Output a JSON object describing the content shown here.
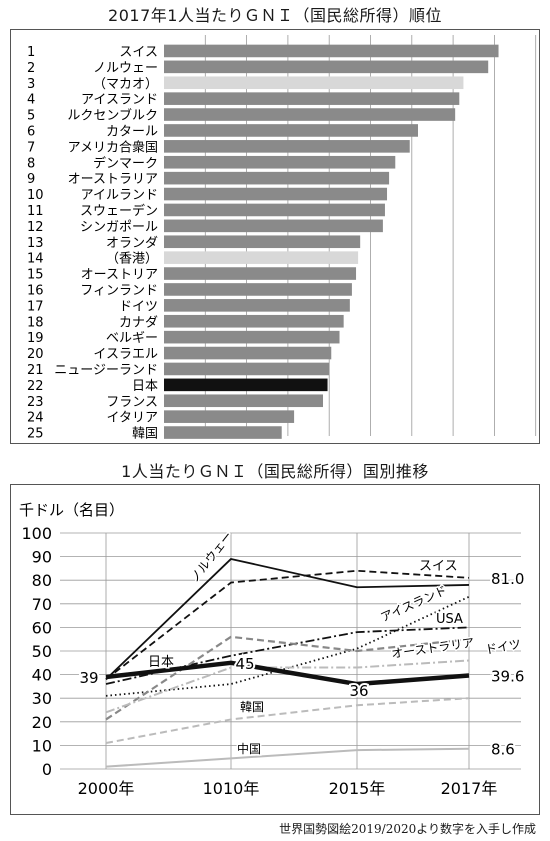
{
  "titles": {
    "ranking": "2017年1人当たりＧＮＩ（国民総所得）順位",
    "trend": "1人当たりＧＮＩ（国民総所得）国別推移"
  },
  "source": "世界国勢図絵2019/2020より数字を入手し作成",
  "colors": {
    "normal": "#8a8a8a",
    "highlight": "#d8d8d8",
    "japan": "#111111"
  },
  "chart_data": [
    {
      "type": "bar",
      "orientation": "horizontal",
      "title": "2017年1人当たりＧＮＩ（国民総所得）順位",
      "categories": [
        "スイス",
        "ノルウェー",
        "（マカオ）",
        "アイスランド",
        "ルクセンブルク",
        "カタール",
        "アメリカ合衆国",
        "デンマーク",
        "オーストラリア",
        "アイルランド",
        "スウェーデン",
        "シンガポール",
        "オランダ",
        "（香港）",
        "オーストリア",
        "フィンランド",
        "ドイツ",
        "カナダ",
        "ベルギー",
        "イスラエル",
        "ニュージーランド",
        "日本",
        "フランス",
        "イタリア",
        "韓国"
      ],
      "ranks": [
        "1",
        "2",
        "3",
        "4",
        "5",
        "6",
        "7",
        "8",
        "9",
        "10",
        "11",
        "12",
        "13",
        "14",
        "15",
        "16",
        "17",
        "18",
        "19",
        "20",
        "21",
        "22",
        "23",
        "24",
        "25"
      ],
      "values": [
        81.0,
        78.5,
        72.5,
        71.5,
        70.5,
        61.5,
        59.5,
        56.0,
        54.5,
        54.0,
        53.5,
        53.0,
        47.5,
        47.0,
        46.5,
        45.5,
        45.0,
        43.5,
        42.5,
        40.5,
        40.0,
        39.6,
        38.5,
        31.5,
        28.5
      ],
      "styles": [
        "normal",
        "normal",
        "highlight",
        "normal",
        "normal",
        "normal",
        "normal",
        "normal",
        "normal",
        "normal",
        "normal",
        "normal",
        "normal",
        "highlight",
        "normal",
        "normal",
        "normal",
        "normal",
        "normal",
        "normal",
        "normal",
        "japan",
        "normal",
        "normal",
        "normal"
      ],
      "xlim": [
        0,
        90
      ],
      "grid": true
    },
    {
      "type": "line",
      "title": "1人当たりＧＮＩ（国民総所得）国別推移",
      "ylabel": "千ドル（名目）",
      "categories": [
        "2000年",
        "1010年",
        "2015年",
        "2017年"
      ],
      "yticks": [
        0,
        10,
        20,
        30,
        40,
        50,
        60,
        70,
        80,
        90,
        100
      ],
      "ylim": [
        0,
        100
      ],
      "grid": true,
      "series": [
        {
          "name": "ノルウェー",
          "values": [
            38,
            89,
            77,
            78
          ],
          "color": "#111111",
          "dash": "",
          "width": 1.8
        },
        {
          "name": "スイス",
          "values": [
            38,
            79,
            84,
            81
          ],
          "color": "#111111",
          "dash": "7,4",
          "width": 1.8
        },
        {
          "name": "アイスランド",
          "values": [
            31,
            36,
            51,
            73
          ],
          "color": "#111111",
          "dash": "1.5,3",
          "width": 1.8
        },
        {
          "name": "USA",
          "values": [
            36,
            48,
            58,
            60
          ],
          "color": "#111111",
          "dash": "9,3,2,3",
          "width": 1.8
        },
        {
          "name": "オーストラリア",
          "values": [
            21,
            56,
            50,
            55
          ],
          "color": "#888888",
          "dash": "7,4",
          "width": 2.2
        },
        {
          "name": "ドイツ",
          "values": [
            24,
            43,
            43,
            46
          ],
          "color": "#bbbbbb",
          "dash": "9,3,2,3",
          "width": 2
        },
        {
          "name": "日本",
          "values": [
            39,
            45,
            36,
            39.6
          ],
          "color": "#111111",
          "dash": "",
          "width": 4.5
        },
        {
          "name": "韓国",
          "values": [
            11,
            21,
            27,
            30
          ],
          "color": "#bbbbbb",
          "dash": "7,4",
          "width": 2
        },
        {
          "name": "中国",
          "values": [
            1,
            4.5,
            8,
            8.6
          ],
          "color": "#bbbbbb",
          "dash": "",
          "width": 2
        }
      ],
      "annotations": [
        {
          "text": "39",
          "series": "日本",
          "index": 0
        },
        {
          "text": "45",
          "series": "日本",
          "index": 1
        },
        {
          "text": "36",
          "series": "日本",
          "index": 2
        },
        {
          "text": "39.6",
          "series": "日本",
          "index": 3
        },
        {
          "text": "81.0",
          "series": "スイス",
          "index": 3
        },
        {
          "text": "8.6",
          "series": "中国",
          "index": 3
        }
      ]
    }
  ]
}
